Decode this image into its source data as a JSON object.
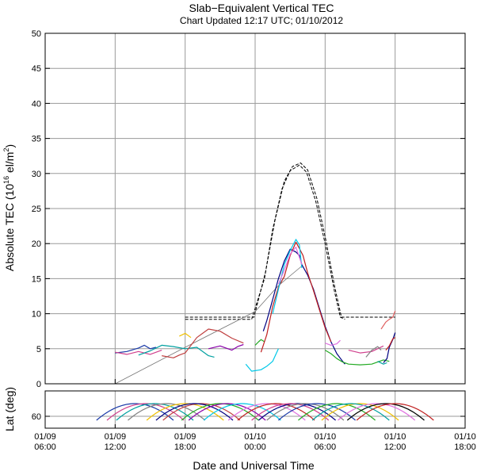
{
  "chart_data": {
    "type": "line",
    "title": "Slab−Equivalent Vertical TEC",
    "subtitle": "Chart Updated 12:17 UTC; 01/10/2012",
    "xlabel": "Date and Universal Time",
    "main_panel": {
      "ylabel_prefix": "Absolute TEC (10",
      "ylabel_exp1": "16",
      "ylabel_mid": " el/m",
      "ylabel_exp2": "2",
      "ylabel_suffix": ")",
      "ylim": [
        0,
        50
      ],
      "yticks": [
        0,
        5,
        10,
        15,
        20,
        25,
        30,
        35,
        40,
        45,
        50
      ],
      "grid": true,
      "reference_curves": [
        {
          "style": "dashed",
          "points": [
            [
              -6,
              9.2
            ],
            [
              -0.3,
              9.2
            ],
            [
              0.8,
              15
            ],
            [
              1.5,
              22
            ],
            [
              2.3,
              27.8
            ],
            [
              3,
              30.4
            ],
            [
              3.8,
              31.2
            ],
            [
              4.4,
              30.2
            ],
            [
              5.2,
              26
            ],
            [
              6,
              20
            ],
            [
              6.8,
              13.2
            ],
            [
              7.3,
              9.5
            ],
            [
              7.7,
              9.2
            ]
          ]
        },
        {
          "style": "dashed",
          "points": [
            [
              -6,
              9.5
            ],
            [
              -0.1,
              9.5
            ],
            [
              0.9,
              16
            ],
            [
              1.7,
              23.3
            ],
            [
              2.5,
              28.9
            ],
            [
              3.2,
              31
            ],
            [
              3.9,
              31.5
            ],
            [
              4.5,
              30.5
            ],
            [
              5.3,
              26.4
            ],
            [
              6.1,
              20.2
            ],
            [
              6.8,
              14
            ],
            [
              7.4,
              9.5
            ],
            [
              12,
              9.5
            ]
          ]
        },
        {
          "style": "solid-thin",
          "points": [
            [
              -12,
              0
            ],
            [
              -6,
              5.2
            ],
            [
              0,
              10.3
            ],
            [
              2,
              14
            ],
            [
              4,
              16.8
            ]
          ]
        }
      ],
      "series": [
        {
          "color": "#1a3aa8",
          "points": [
            [
              -12,
              4.4
            ],
            [
              -11,
              4.6
            ],
            [
              -10,
              5.1
            ],
            [
              -9.5,
              5.5
            ],
            [
              -9,
              5.0
            ],
            [
              -8.5,
              5.2
            ]
          ]
        },
        {
          "color": "#d0408d",
          "points": [
            [
              -12,
              4.5
            ],
            [
              -11,
              4.2
            ],
            [
              -10,
              4.6
            ],
            [
              -9,
              4.2
            ],
            [
              -8,
              4.8
            ]
          ]
        },
        {
          "color": "#00a0a0",
          "points": [
            [
              -10,
              4.1
            ],
            [
              -9,
              4.7
            ],
            [
              -8,
              5.5
            ],
            [
              -7,
              5.3
            ],
            [
              -6,
              5.0
            ],
            [
              -5,
              5.2
            ],
            [
              -4,
              4.0
            ],
            [
              -3.5,
              3.8
            ]
          ]
        },
        {
          "color": "#c04040",
          "points": [
            [
              -8,
              4.0
            ],
            [
              -7,
              3.7
            ],
            [
              -6.5,
              4.1
            ],
            [
              -6,
              4.4
            ],
            [
              -5,
              6.6
            ],
            [
              -4,
              7.8
            ],
            [
              -3,
              7.5
            ],
            [
              -2,
              6.5
            ],
            [
              -1,
              5.8
            ]
          ]
        },
        {
          "color": "#f0c000",
          "points": [
            [
              -6.5,
              6.8
            ],
            [
              -6,
              7.2
            ],
            [
              -5.5,
              6.6
            ]
          ]
        },
        {
          "color": "#8a00aa",
          "points": [
            [
              -4,
              5.0
            ],
            [
              -3,
              5.4
            ],
            [
              -2,
              4.8
            ],
            [
              -1.5,
              5.3
            ],
            [
              -1,
              5.6
            ]
          ]
        },
        {
          "color": "#00c8e8",
          "points": [
            [
              -0.8,
              2.8
            ],
            [
              -0.3,
              1.8
            ],
            [
              0.5,
              2.0
            ],
            [
              1,
              2.5
            ],
            [
              1.5,
              3.2
            ],
            [
              2,
              5
            ]
          ]
        },
        {
          "color": "#22aa22",
          "points": [
            [
              0,
              5.5
            ],
            [
              0.3,
              6
            ],
            [
              0.5,
              6.3
            ],
            [
              0.8,
              6.0
            ]
          ]
        },
        {
          "color": "#000080",
          "points": [
            [
              0.7,
              7.5
            ],
            [
              1,
              9
            ],
            [
              1.5,
              12
            ],
            [
              2,
              15
            ],
            [
              2.5,
              17.5
            ],
            [
              3,
              19.2
            ],
            [
              3.5,
              18.8
            ],
            [
              3.8,
              18.3
            ],
            [
              4,
              17
            ],
            [
              4.5,
              15.5
            ],
            [
              5,
              13.5
            ],
            [
              5.5,
              10.8
            ],
            [
              6,
              8.2
            ],
            [
              6.5,
              6.0
            ],
            [
              7,
              4.3
            ],
            [
              7.5,
              3.2
            ],
            [
              7.7,
              2.8
            ]
          ]
        },
        {
          "color": "#c02020",
          "points": [
            [
              0.5,
              4.5
            ],
            [
              1,
              7.0
            ],
            [
              1.5,
              11
            ],
            [
              2,
              13.8
            ],
            [
              2.5,
              15.3
            ],
            [
              3,
              18.3
            ],
            [
              3.5,
              20.2
            ],
            [
              3.8,
              19.3
            ],
            [
              4.1,
              18.3
            ],
            [
              4.5,
              15.8
            ],
            [
              5,
              13.3
            ],
            [
              5.5,
              10.6
            ],
            [
              6,
              8.0
            ],
            [
              6.5,
              6.0
            ]
          ]
        },
        {
          "color": "#00c8e8",
          "points": [
            [
              1.5,
              10
            ],
            [
              2,
              13.5
            ],
            [
              2.5,
              17
            ],
            [
              3,
              19
            ],
            [
              3.5,
              20.6
            ],
            [
              3.8,
              19.8
            ],
            [
              4,
              16.5
            ]
          ]
        },
        {
          "color": "#e070e0",
          "points": [
            [
              2,
              14.2
            ],
            [
              2.5,
              16.2
            ],
            [
              3,
              18.5
            ],
            [
              3.5,
              19.5
            ],
            [
              4,
              17.0
            ]
          ]
        },
        {
          "color": "#22aa22",
          "points": [
            [
              6,
              4.8
            ],
            [
              6.5,
              4.3
            ],
            [
              7,
              3.6
            ],
            [
              7.5,
              3.1
            ],
            [
              8,
              2.8
            ],
            [
              9,
              2.7
            ],
            [
              10,
              2.8
            ],
            [
              11,
              3.4
            ],
            [
              11.5,
              3.2
            ]
          ]
        },
        {
          "color": "#e070e0",
          "points": [
            [
              6,
              5.8
            ],
            [
              6.5,
              5.5
            ],
            [
              7,
              5.7
            ],
            [
              7.3,
              6.2
            ]
          ]
        },
        {
          "color": "#d0408d",
          "points": [
            [
              8,
              4.8
            ],
            [
              9,
              4.4
            ],
            [
              10,
              4.6
            ],
            [
              11,
              5.4
            ]
          ]
        },
        {
          "color": "#808080",
          "points": [
            [
              9.5,
              3.8
            ],
            [
              10,
              4.8
            ],
            [
              10.5,
              5.3
            ],
            [
              10.8,
              4.8
            ]
          ]
        },
        {
          "color": "#00a0a0",
          "points": [
            [
              10.5,
              3.2
            ],
            [
              11,
              2.8
            ],
            [
              11.3,
              3.0
            ]
          ]
        },
        {
          "color": "#000080",
          "points": [
            [
              11,
              3.0
            ],
            [
              11.3,
              3.6
            ],
            [
              11.5,
              5.2
            ],
            [
              11.8,
              6.3
            ],
            [
              12,
              7.3
            ]
          ]
        },
        {
          "color": "#c02020",
          "points": [
            [
              11.2,
              4.8
            ],
            [
              11.5,
              5.4
            ],
            [
              11.8,
              6.4
            ],
            [
              12,
              6.6
            ]
          ]
        },
        {
          "color": "#e06060",
          "points": [
            [
              10.8,
              7.8
            ],
            [
              11.2,
              8.8
            ],
            [
              11.5,
              9.2
            ],
            [
              11.8,
              9.5
            ],
            [
              12,
              10.4
            ]
          ]
        }
      ]
    },
    "lat_panel": {
      "ylabel": "Lat (deg)",
      "yticks": [
        "60"
      ],
      "arcs": [
        {
          "color": "#1a3aa8",
          "center": -10.3
        },
        {
          "color": "#d0408d",
          "center": -9.4
        },
        {
          "color": "#00a0a0",
          "center": -8.6
        },
        {
          "color": "#808080",
          "center": -7.6
        },
        {
          "color": "#f0c000",
          "center": -6.0
        },
        {
          "color": "#c04040",
          "center": -4.6
        },
        {
          "color": "#000080",
          "center": -5.2
        },
        {
          "color": "#22aa22",
          "center": -3.0
        },
        {
          "color": "#8a00aa",
          "center": -2.4
        },
        {
          "color": "#00c8e8",
          "center": -1.1
        },
        {
          "color": "#e070e0",
          "center": 1.0
        },
        {
          "color": "#c02020",
          "center": 1.8
        },
        {
          "color": "#000080",
          "center": 3.6
        },
        {
          "color": "#d0408d",
          "center": 3.0
        },
        {
          "color": "#808080",
          "center": 4.3
        },
        {
          "color": "#1a3aa8",
          "center": 5.3
        },
        {
          "color": "#22aa22",
          "center": 7.0
        },
        {
          "color": "#f0c000",
          "center": 9.0
        },
        {
          "color": "#00a0a0",
          "center": 8.2
        },
        {
          "color": "#e070e0",
          "center": 10.4
        },
        {
          "color": "#000000",
          "center": 11.2
        },
        {
          "color": "#c02020",
          "center": 12.0
        }
      ]
    },
    "x_axis": {
      "xlim": [
        -18,
        18
      ],
      "tick_hours": [
        -18,
        -12,
        -6,
        0,
        6,
        12,
        18
      ],
      "tick_dates": [
        "01/09",
        "01/09",
        "01/09",
        "01/10",
        "01/10",
        "01/10",
        "01/10"
      ],
      "tick_times": [
        "06:00",
        "12:00",
        "18:00",
        "00:00",
        "06:00",
        "12:00",
        "18:00"
      ]
    }
  }
}
